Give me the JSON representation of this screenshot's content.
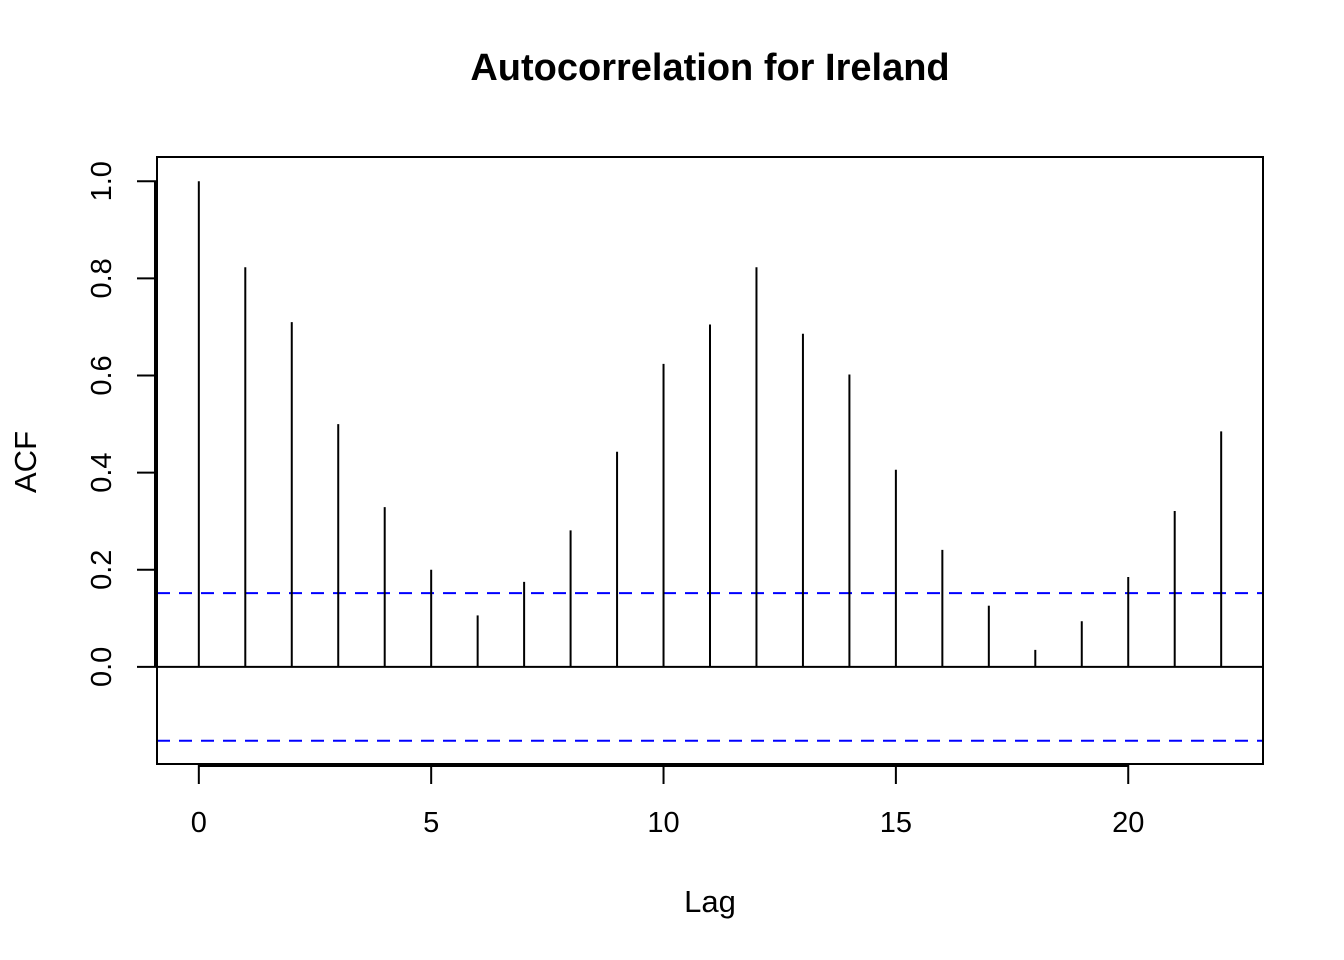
{
  "chart_data": {
    "type": "bar",
    "title": "Autocorrelation for Ireland",
    "xlabel": "Lag",
    "ylabel": "ACF",
    "x": [
      0,
      1,
      2,
      3,
      4,
      5,
      6,
      7,
      8,
      9,
      10,
      11,
      12,
      13,
      14,
      15,
      16,
      17,
      18,
      19,
      20,
      21,
      22
    ],
    "values": [
      1.0,
      0.823,
      0.71,
      0.5,
      0.329,
      0.2,
      0.106,
      0.175,
      0.281,
      0.443,
      0.624,
      0.705,
      0.823,
      0.686,
      0.602,
      0.406,
      0.241,
      0.126,
      0.035,
      0.094,
      0.185,
      0.321,
      0.485
    ],
    "confidence_bound": 0.152,
    "xlim": [
      -0.9,
      22.9
    ],
    "ylim": [
      -0.2,
      1.05
    ],
    "xticks": [
      0,
      5,
      10,
      15,
      20
    ],
    "yticks": [
      0.0,
      0.2,
      0.4,
      0.6,
      0.8,
      1.0
    ],
    "xtick_labels": [
      "0",
      "5",
      "10",
      "15",
      "20"
    ],
    "ytick_labels": [
      "0.0",
      "0.2",
      "0.4",
      "0.6",
      "0.8",
      "1.0"
    ],
    "ci_color": "#0000ff",
    "spike_color": "#000000",
    "grid": false,
    "legend": "none"
  }
}
